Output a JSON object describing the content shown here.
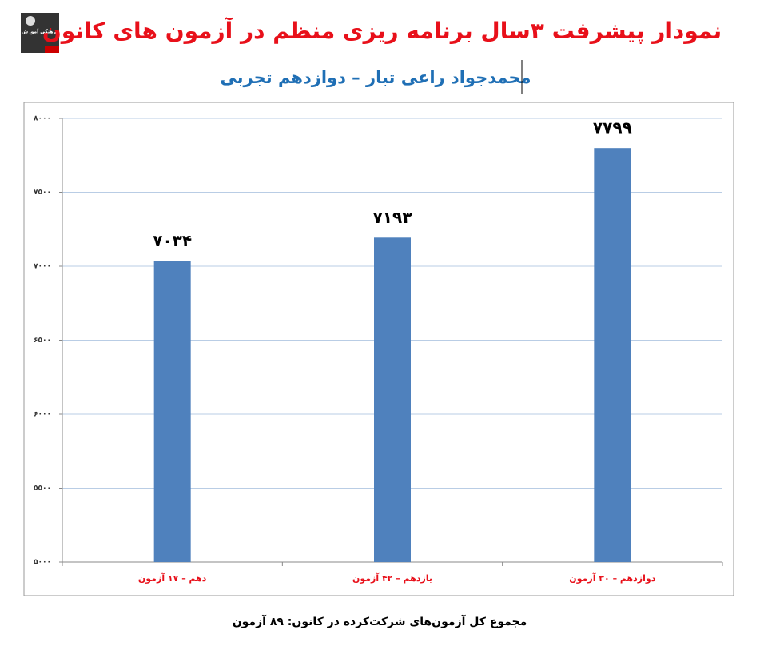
{
  "logo_text": "کانون فرهنگی آموزش",
  "chart_data": {
    "type": "bar",
    "title": "نمودار پیشرفت ۳سال برنامه ریزی منظم در آزمون های کانون",
    "subtitle": "محمدجواد راعی تبار – دوازدهم تجربی",
    "footnote": "مجموع کل آزمون‌های شرکت‌کرده در کانون: ۸۹ آزمون",
    "categories": [
      "دهم – ۱۷ آزمون",
      "یازدهم – ۴۲ آزمون",
      "دوازدهم – ۳۰ آزمون"
    ],
    "values": [
      7034,
      7193,
      7799
    ],
    "value_labels": [
      "۷۰۳۴",
      "۷۱۹۳",
      "۷۷۹۹"
    ],
    "color": "#4f81bd",
    "ylim": [
      5000,
      8000
    ],
    "yticks": [
      {
        "value": 5000,
        "label": "۵۰۰۰"
      },
      {
        "value": 5500,
        "label": "۵۵۰۰"
      },
      {
        "value": 6000,
        "label": "۶۰۰۰"
      },
      {
        "value": 6500,
        "label": "۶۵۰۰"
      },
      {
        "value": 7000,
        "label": "۷۰۰۰"
      },
      {
        "value": 7500,
        "label": "۷۵۰۰"
      },
      {
        "value": 8000,
        "label": "۸۰۰۰"
      }
    ],
    "grid": true
  }
}
